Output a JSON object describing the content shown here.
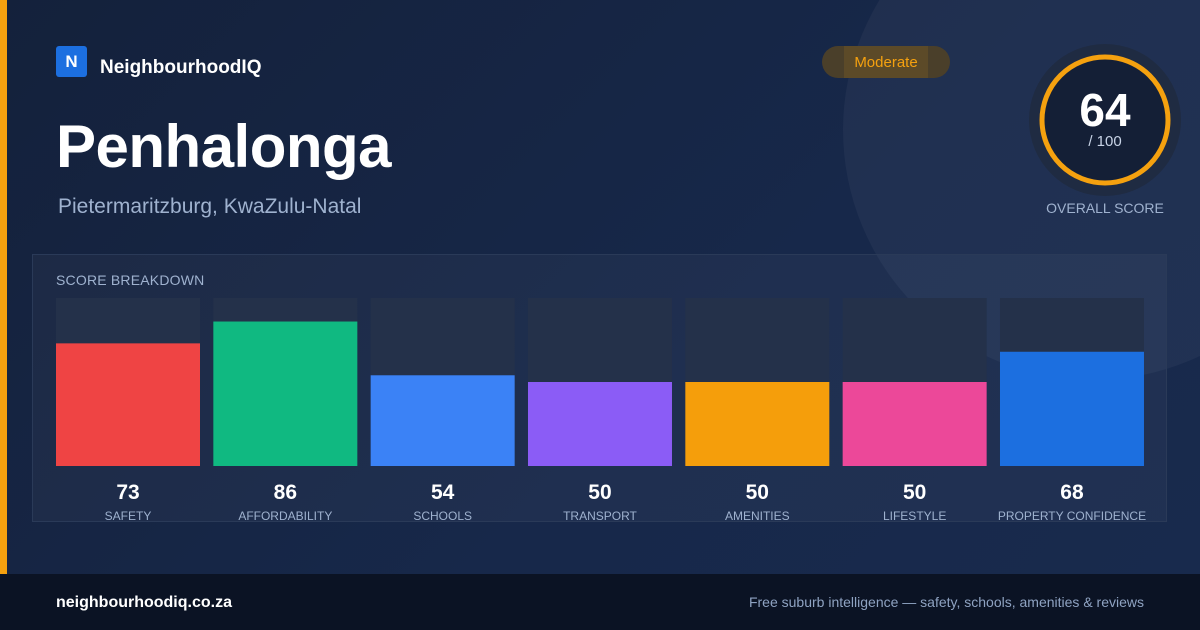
{
  "brand": {
    "logo_letter": "N",
    "name": "NeighbourhoodIQ"
  },
  "suburb": {
    "name": "Penhalonga",
    "location": "Pietermaritzburg, KwaZulu-Natal"
  },
  "badge": "Moderate",
  "overall": {
    "score": "64",
    "max": "/ 100",
    "label": "OVERALL SCORE",
    "value": 64,
    "out_of": 100
  },
  "breakdown_title": "SCORE BREAKDOWN",
  "chart_data": {
    "type": "bar",
    "categories": [
      "SAFETY",
      "AFFORDABILITY",
      "SCHOOLS",
      "TRANSPORT",
      "AMENITIES",
      "LIFESTYLE",
      "PROPERTY CONFIDENCE"
    ],
    "values": [
      73,
      86,
      54,
      50,
      50,
      50,
      68
    ],
    "colors": [
      "#ef4444",
      "#10b981",
      "#3b82f6",
      "#8b5cf6",
      "#f59e0b",
      "#ec4899",
      "#1c6fe0"
    ],
    "ylim": [
      0,
      100
    ]
  },
  "colors": {
    "accent": "#f5a10f",
    "brand": "#1c6fe0",
    "track": "#24314a"
  },
  "footer": {
    "site": "neighbourhoodiq.co.za",
    "tagline": "Free suburb intelligence — safety, schools, amenities & reviews"
  }
}
